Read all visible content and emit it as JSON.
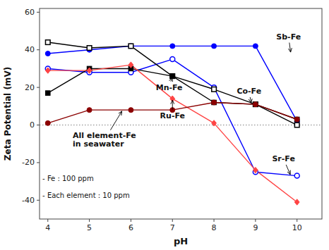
{
  "chart_data": {
    "type": "line",
    "x_label": "pH",
    "y_label": "Zeta Potential (mV)",
    "x": [
      4,
      5,
      6,
      7,
      8,
      9,
      10
    ],
    "series": [
      {
        "color": "blue",
        "marker": "circle",
        "values": [
          38,
          40,
          42,
          42,
          42,
          42,
          2
        ]
      },
      {
        "color": "blue",
        "marker": "circle-open",
        "values": [
          30,
          28,
          28,
          35,
          20,
          -25,
          -27
        ]
      },
      {
        "color": "black",
        "marker": "square-open",
        "values": [
          44,
          41,
          42,
          26,
          19,
          11,
          0
        ]
      },
      {
        "color": "black",
        "marker": "square",
        "values": [
          17,
          30,
          30,
          26,
          12,
          11,
          3
        ]
      },
      {
        "color": "#FF4444",
        "marker": "diamond",
        "values": [
          29,
          29,
          32,
          14,
          1,
          -24,
          -41
        ]
      },
      {
        "color": "#8B0000",
        "marker": "circle",
        "values": [
          1,
          8,
          8,
          8,
          12,
          11,
          3
        ]
      }
    ],
    "reference_lines": [
      {
        "value": 0,
        "line_style": "dotted"
      }
    ],
    "annotations": [
      {
        "text": "Sb-Fe",
        "xy": [
          9.85,
          38
        ],
        "xytext": [
          9.5,
          47
        ]
      },
      {
        "text": "Co-Fe",
        "xy": [
          8.9,
          11
        ],
        "xytext": [
          8.55,
          18
        ]
      },
      {
        "text": "Mn-Fe",
        "xy": [
          7.0,
          26
        ],
        "xytext": [
          6.6,
          20
        ]
      },
      {
        "text": "Ru-Fe",
        "xy": [
          7.0,
          14
        ],
        "xytext": [
          6.7,
          5
        ]
      },
      {
        "text": "Sr-Fe",
        "xy": [
          9.85,
          -27
        ],
        "xytext": [
          9.4,
          -18
        ]
      },
      {
        "text": "All element-Fe\nin seawater",
        "xy": [
          5.8,
          8
        ],
        "xytext": [
          4.6,
          -8
        ]
      }
    ],
    "note": {
      "text": "- Fe : 100 ppm\n\n- Each element : 10 ppm",
      "x": 3.87,
      "y": -26
    },
    "xlim": [
      3.8,
      10.6
    ],
    "ylim": [
      -50,
      62
    ],
    "xticks": [
      4,
      5,
      6,
      7,
      8,
      9,
      10
    ],
    "yticks": [
      -40,
      -20,
      0,
      20,
      40,
      60
    ],
    "grid": false
  }
}
